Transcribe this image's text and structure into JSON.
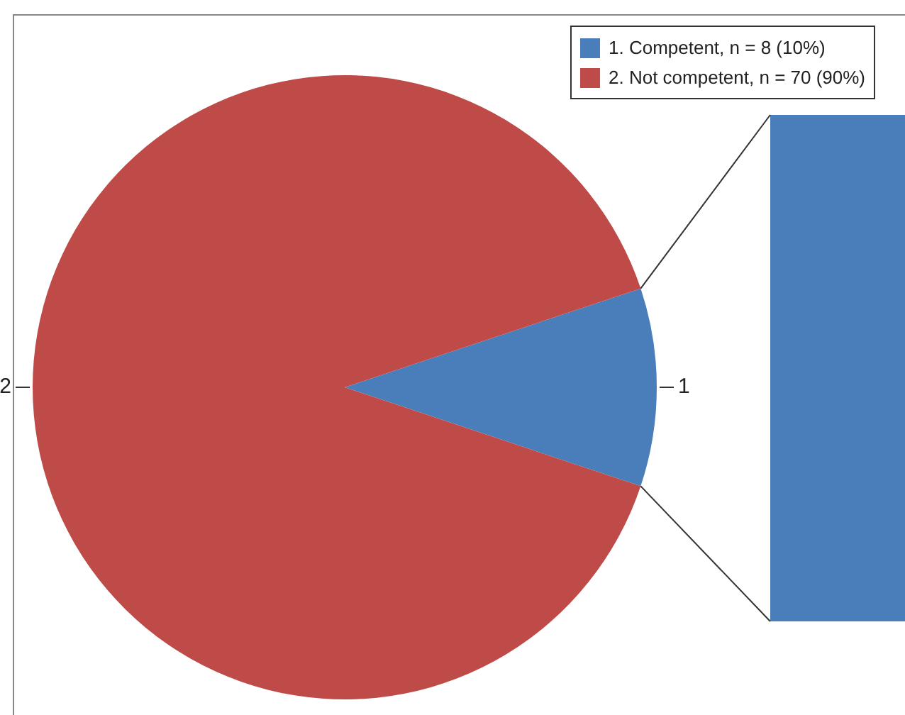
{
  "chart_data": {
    "type": "pie",
    "categories": [
      "1. Competent, n = 8 (10%)",
      "2. Not competent, n = 70 (90%)"
    ],
    "values": [
      8,
      70
    ],
    "colors": [
      "#4a7ebb",
      "#be4b48"
    ],
    "annotations": [
      {
        "text": "1",
        "x": "1. Competent, n = 8 (10%)"
      },
      {
        "text": "2",
        "x": "2. Not competent, n = 70 (90%)"
      }
    ],
    "legend": "top right"
  }
}
